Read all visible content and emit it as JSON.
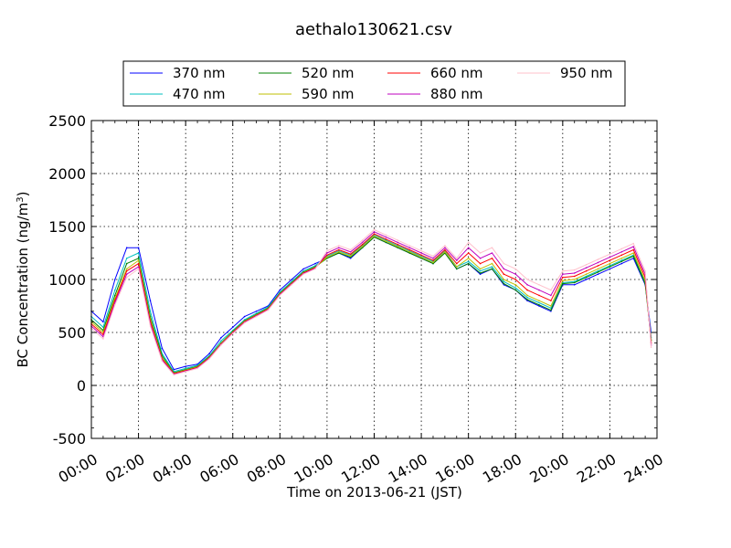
{
  "chart_data": {
    "type": "line",
    "title": "aethalo130621.csv",
    "xlabel": "Time on 2013-06-21 (JST)",
    "ylabel": "BC Concentration (ng/m",
    "ylabel_sup": "3",
    "ylabel_end": ")",
    "xlim": [
      "00:00",
      "24:00"
    ],
    "ylim": [
      -500,
      2500
    ],
    "grid": true,
    "legend_position": "top-center",
    "x_ticks": [
      "00:00",
      "02:00",
      "04:00",
      "06:00",
      "08:00",
      "10:00",
      "12:00",
      "14:00",
      "16:00",
      "18:00",
      "20:00",
      "22:00",
      "24:00"
    ],
    "y_ticks": [
      -500,
      0,
      500,
      1000,
      1500,
      2000,
      2500
    ],
    "x_hours": [
      0,
      0.5,
      1,
      1.5,
      2,
      2.5,
      3,
      3.5,
      4,
      4.5,
      5,
      5.5,
      6,
      6.5,
      7,
      7.5,
      8,
      8.5,
      9,
      9.5,
      10,
      10.5,
      11,
      11.5,
      12,
      12.5,
      13,
      13.5,
      14,
      14.5,
      15,
      15.5,
      16,
      16.5,
      17,
      17.5,
      18,
      18.5,
      19,
      19.5,
      20,
      20.5,
      21,
      21.5,
      22,
      22.5,
      23,
      23.5,
      23.75
    ],
    "series": [
      {
        "name": "370 nm",
        "color": "#0000ff",
        "values": [
          700,
          600,
          1000,
          1300,
          1300,
          800,
          350,
          150,
          180,
          200,
          300,
          450,
          550,
          650,
          700,
          750,
          900,
          1000,
          1100,
          1150,
          1200,
          1250,
          1200,
          1300,
          1400,
          1350,
          1300,
          1250,
          1200,
          1150,
          1250,
          1100,
          1150,
          1050,
          1100,
          950,
          900,
          800,
          750,
          700,
          950,
          950,
          1000,
          1050,
          1100,
          1150,
          1200,
          950,
          500
        ]
      },
      {
        "name": "470 nm",
        "color": "#00bfbf",
        "values": [
          650,
          550,
          900,
          1200,
          1250,
          700,
          300,
          130,
          160,
          190,
          280,
          420,
          520,
          620,
          680,
          740,
          880,
          980,
          1080,
          1130,
          1220,
          1270,
          1230,
          1320,
          1420,
          1370,
          1320,
          1270,
          1220,
          1170,
          1270,
          1120,
          1170,
          1080,
          1120,
          980,
          920,
          830,
          780,
          730,
          970,
          980,
          1030,
          1080,
          1130,
          1180,
          1230,
          980,
          450
        ]
      },
      {
        "name": "520 nm",
        "color": "#008000",
        "values": [
          620,
          520,
          850,
          1150,
          1200,
          650,
          280,
          120,
          150,
          180,
          270,
          400,
          510,
          610,
          670,
          730,
          870,
          970,
          1070,
          1120,
          1200,
          1250,
          1210,
          1300,
          1400,
          1350,
          1300,
          1250,
          1200,
          1150,
          1250,
          1100,
          1150,
          1060,
          1100,
          960,
          900,
          810,
          760,
          710,
          960,
          970,
          1020,
          1070,
          1120,
          1170,
          1220,
          960,
          430
        ]
      },
      {
        "name": "590 nm",
        "color": "#bfbf00",
        "values": [
          600,
          500,
          820,
          1100,
          1180,
          620,
          260,
          115,
          145,
          175,
          265,
          395,
          505,
          605,
          665,
          725,
          865,
          965,
          1065,
          1115,
          1210,
          1260,
          1220,
          1310,
          1410,
          1360,
          1310,
          1260,
          1210,
          1160,
          1260,
          1120,
          1200,
          1100,
          1150,
          1000,
          950,
          850,
          800,
          750,
          990,
          1000,
          1050,
          1100,
          1150,
          1200,
          1250,
          990,
          420
        ]
      },
      {
        "name": "660 nm",
        "color": "#ff0000",
        "values": [
          580,
          480,
          800,
          1080,
          1150,
          600,
          250,
          110,
          140,
          170,
          260,
          390,
          500,
          600,
          660,
          720,
          860,
          960,
          1060,
          1110,
          1230,
          1280,
          1240,
          1330,
          1430,
          1380,
          1330,
          1280,
          1230,
          1180,
          1280,
          1150,
          1250,
          1150,
          1200,
          1050,
          1000,
          900,
          850,
          800,
          1020,
          1030,
          1080,
          1130,
          1180,
          1230,
          1280,
          1020,
          400
        ]
      },
      {
        "name": "880 nm",
        "color": "#bf00bf",
        "values": [
          560,
          460,
          780,
          1050,
          1120,
          580,
          240,
          105,
          135,
          165,
          255,
          385,
          495,
          595,
          655,
          715,
          855,
          955,
          1055,
          1105,
          1250,
          1300,
          1260,
          1350,
          1450,
          1400,
          1350,
          1300,
          1250,
          1200,
          1300,
          1180,
          1300,
          1200,
          1250,
          1100,
          1050,
          950,
          900,
          850,
          1050,
          1060,
          1110,
          1160,
          1210,
          1260,
          1310,
          1050,
          380
        ]
      },
      {
        "name": "950 nm",
        "color": "#ffc0cb",
        "values": [
          540,
          440,
          760,
          1020,
          1100,
          560,
          230,
          100,
          130,
          160,
          250,
          380,
          490,
          590,
          650,
          710,
          850,
          950,
          1050,
          1100,
          1270,
          1320,
          1280,
          1370,
          1470,
          1420,
          1370,
          1320,
          1270,
          1220,
          1320,
          1200,
          1350,
          1250,
          1300,
          1150,
          1100,
          1000,
          950,
          900,
          1080,
          1090,
          1140,
          1190,
          1240,
          1290,
          1340,
          1080,
          360
        ]
      }
    ]
  }
}
